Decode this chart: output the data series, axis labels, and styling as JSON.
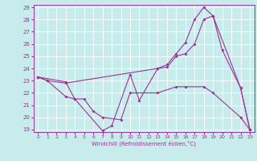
{
  "xlabel": "Windchill (Refroidissement éolien,°C)",
  "bg_color": "#c8ecec",
  "line_color": "#993399",
  "grid_color": "#ffffff",
  "ylim": [
    19,
    29
  ],
  "xlim": [
    -0.5,
    23.5
  ],
  "yticks": [
    19,
    20,
    21,
    22,
    23,
    24,
    25,
    26,
    27,
    28,
    29
  ],
  "xticks": [
    0,
    1,
    2,
    3,
    4,
    5,
    6,
    7,
    8,
    9,
    10,
    11,
    12,
    13,
    14,
    15,
    16,
    17,
    18,
    19,
    20,
    21,
    22,
    23
  ],
  "curve1_x": [
    0,
    1,
    3,
    4,
    7,
    8,
    10,
    11,
    13,
    14,
    15,
    16,
    17,
    18,
    19,
    20,
    22,
    23
  ],
  "curve1_y": [
    23.3,
    23.0,
    21.7,
    21.5,
    18.9,
    19.3,
    23.5,
    21.4,
    24.0,
    24.3,
    25.2,
    26.1,
    28.0,
    29.0,
    28.3,
    25.5,
    22.4,
    19.0
  ],
  "curve2_x": [
    0,
    1,
    3,
    13,
    14,
    15,
    16,
    17,
    18,
    19,
    22,
    23
  ],
  "curve2_y": [
    23.3,
    23.0,
    22.8,
    24.0,
    24.1,
    25.0,
    25.2,
    26.0,
    28.0,
    28.3,
    22.4,
    19.0
  ],
  "curve3_x": [
    0,
    3,
    4,
    5,
    6,
    7,
    9,
    10,
    13,
    15,
    16,
    18,
    19,
    22,
    23
  ],
  "curve3_y": [
    23.3,
    22.9,
    21.5,
    21.5,
    20.5,
    20.0,
    19.8,
    22.0,
    22.0,
    22.5,
    22.5,
    22.5,
    22.0,
    20.0,
    19.0
  ]
}
